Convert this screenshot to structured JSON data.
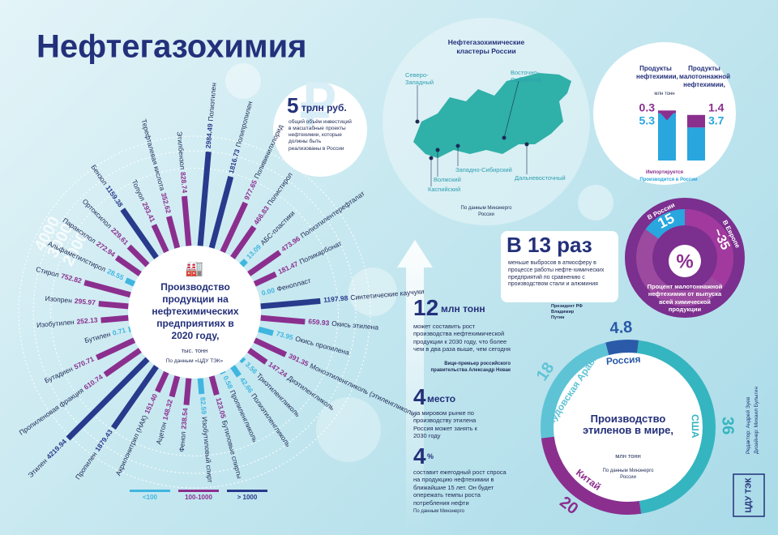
{
  "title": "Нефтегазохимия",
  "production": {
    "title": "Производство продукции на нефтехимических предприятиях в 2020 году,",
    "unit": "тыс. тонн",
    "source": "По данным «ЦДУ ТЭК»",
    "rings": [
      4000,
      3000,
      2000
    ],
    "items": [
      {
        "name": "Полиэтилен",
        "value": 2984.49,
        "color": "#283a8c"
      },
      {
        "name": "Полипропилен",
        "value": 1816.73,
        "color": "#283a8c"
      },
      {
        "name": "Поливинилхлорид",
        "value": 977.65,
        "color": "#8b2f8f"
      },
      {
        "name": "Полистирол",
        "value": 466.83,
        "color": "#8b2f8f"
      },
      {
        "name": "АБС-пластики",
        "value": 13.09,
        "color": "#3fb6e0"
      },
      {
        "name": "Полиэтилентерефталат",
        "value": 473.96,
        "color": "#8b2f8f"
      },
      {
        "name": "Поликарбонат",
        "value": 181.47,
        "color": "#8b2f8f"
      },
      {
        "name": "Фенопласт",
        "value": 0,
        "value_label": "0.00",
        "color": "#3fb6e0"
      },
      {
        "name": "Синтетические каучуки",
        "value": 1197.98,
        "color": "#283a8c"
      },
      {
        "name": "Окись этилена",
        "value": 659.93,
        "color": "#8b2f8f"
      },
      {
        "name": "Окись пропилена",
        "value": 73.95,
        "color": "#3fb6e0"
      },
      {
        "name": "Моноэтиленгликоль (этиленгликоль)",
        "value": 391.35,
        "color": "#8b2f8f"
      },
      {
        "name": "Диэтиленгликоль",
        "value": 147.24,
        "color": "#8b2f8f"
      },
      {
        "name": "Триэтиленгликоль",
        "value": 3.56,
        "color": "#3fb6e0"
      },
      {
        "name": "Полиэтиленгликоль",
        "value": 42.66,
        "color": "#3fb6e0"
      },
      {
        "name": "Пропиленгликоль",
        "value": 0.58,
        "color": "#3fb6e0"
      },
      {
        "name": "Бутиловые спирты",
        "value": 123.05,
        "color": "#8b2f8f"
      },
      {
        "name": "Изобутиловый спирт",
        "value": 82.59,
        "color": "#3fb6e0"
      },
      {
        "name": "Фенол",
        "value": 238.54,
        "color": "#8b2f8f"
      },
      {
        "name": "Ацетон",
        "value": 148.32,
        "color": "#8b2f8f"
      },
      {
        "name": "Акрилонитрил (НАК)",
        "value": 151.4,
        "value_label": "151.40",
        "color": "#8b2f8f"
      },
      {
        "name": "Пропилен",
        "value": 1879.43,
        "color": "#283a8c"
      },
      {
        "name": "Этилен",
        "value": 4219.94,
        "color": "#283a8c"
      },
      {
        "name": "Пропиленовая фракция",
        "value": 610.74,
        "color": "#8b2f8f"
      },
      {
        "name": "Бутадиен",
        "value": 570.71,
        "color": "#8b2f8f"
      },
      {
        "name": "Бутилен",
        "value": 0.71,
        "color": "#3fb6e0"
      },
      {
        "name": "Изобутилен",
        "value": 252.13,
        "color": "#8b2f8f"
      },
      {
        "name": "Изопрен",
        "value": 295.97,
        "color": "#8b2f8f"
      },
      {
        "name": "Стирол",
        "value": 752.82,
        "color": "#8b2f8f"
      },
      {
        "name": "Альфаметилстирол",
        "value": 28.55,
        "color": "#3fb6e0"
      },
      {
        "name": "Параксилол",
        "value": 272.94,
        "color": "#8b2f8f"
      },
      {
        "name": "Ортоксилол",
        "value": 229.61,
        "color": "#8b2f8f"
      },
      {
        "name": "Бензол",
        "value": 1159.38,
        "color": "#283a8c"
      },
      {
        "name": "Толуол",
        "value": 293.41,
        "color": "#8b2f8f"
      },
      {
        "name": "Терефталевая кислота",
        "value": 352.62,
        "color": "#8b2f8f"
      },
      {
        "name": "Этилбензол",
        "value": 828.74,
        "color": "#8b2f8f"
      }
    ],
    "legend": [
      {
        "label": "<100",
        "color": "#3fb6e0"
      },
      {
        "label": "100-1000",
        "color": "#8b2f8f"
      },
      {
        "label": "> 1000",
        "color": "#283a8c"
      }
    ]
  },
  "investment": {
    "number": "5",
    "unit": "трлн руб.",
    "text": "общий объём инвестиций в масштабные проекты нефтехимии, которые должны быть реализованы в России"
  },
  "map": {
    "title": "Нефтегазохимические кластеры России",
    "clusters": [
      "Северо-Западный",
      "Восточно-Сибирский",
      "Волжский",
      "Каспийский",
      "Западно-Сибирский",
      "Дальневосточный"
    ],
    "source": "По данным Минэнерго России"
  },
  "products": {
    "headers": [
      "Продукты нефтехимии,",
      "Продукты малотоннажной нефтехимии,"
    ],
    "unit": "млн тонн",
    "series": [
      {
        "name": "Импортируется",
        "color": "#8b2f8f",
        "values": [
          0.3,
          1.4
        ]
      },
      {
        "name": "Производится в России",
        "color": "#29a6de",
        "values": [
          5.3,
          3.7
        ]
      }
    ]
  },
  "emissions": {
    "headline": "В 13 раз",
    "text": "меньше выбросов в атмосферу в процессе работы нефте-химических предприятий по сравнению с производством стали и алюминия",
    "author": "Президент РФ Владимир Путин"
  },
  "share": {
    "items": [
      {
        "name": "В России",
        "value": 15,
        "label": "15",
        "color": "#29a6de"
      },
      {
        "name": "В Европе",
        "value": 35,
        "label": "~35",
        "color": "#a1399e"
      }
    ],
    "unit": "%",
    "caption": "Процент малотоннажной нефтехимии от выпуска всей химической продукции"
  },
  "facts": [
    {
      "number": "12",
      "unit": "млн тонн",
      "text": "может составить рост производства нефтехимической продукции к 2030 году, что более чем в два раза выше, чем сегодня",
      "author": "Вице-премьер российского правительства Александр Новак"
    },
    {
      "number": "4",
      "unit": "место",
      "text": "на мировом рынке по производству этилена Россия может занять к 2030 году"
    },
    {
      "number": "4",
      "unit": "%",
      "text": "составит ежегодный рост спроса на продукцию нефтехимии в ближайшие 15 лет. Он будет опережать темпы роста потребления нефти",
      "author": "По данным Минэнерго"
    }
  ],
  "ethylene": {
    "title": "Производство этиленов в мире,",
    "unit": "млн тонн",
    "source": "По данным Минэнерго России",
    "items": [
      {
        "name": "Россия",
        "value": 4.8,
        "color": "#2a5aa8"
      },
      {
        "name": "США",
        "value": 36,
        "color": "#35b5c0"
      },
      {
        "name": "Китай",
        "value": 20,
        "color": "#8b2f8f"
      },
      {
        "name": "Саудовская Аравия",
        "value": 18,
        "color": "#5fc3d6"
      }
    ]
  },
  "logo": "ЦДУ ТЭК",
  "credits": [
    "Редактор: Андрей Зуев",
    "Дизайнер: Михаил Булыгин"
  ]
}
